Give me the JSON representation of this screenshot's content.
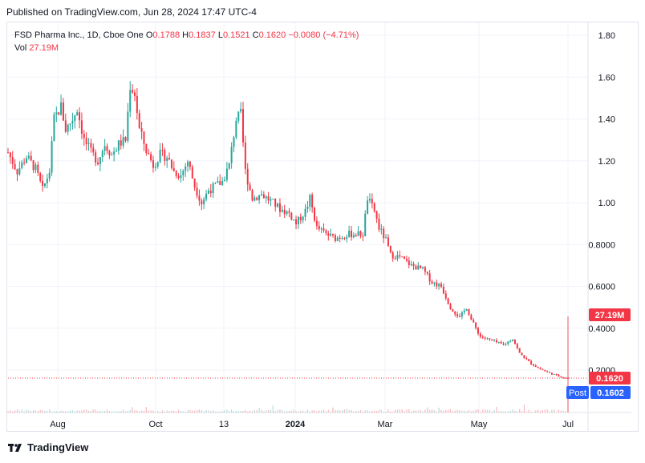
{
  "header": {
    "published": "Published on TradingView.com, Jun 28, 2024 17:47 UTC-4"
  },
  "legend": {
    "symbol": "FSD Pharma Inc., 1D, Cboe One",
    "open_label": "O",
    "open": "0.1788",
    "high_label": "H",
    "high": "0.1837",
    "low_label": "L",
    "low": "0.1521",
    "close_label": "C",
    "close": "0.1620",
    "change": "−0.0080 (−4.71%)",
    "vol_label": "Vol",
    "vol": "27.19M"
  },
  "badges": {
    "volume": "27.19M",
    "last": "0.1620",
    "post_label": "Post",
    "post": "0.1602"
  },
  "footer": {
    "brand": "TradingView"
  },
  "colors": {
    "up": "#26a69a",
    "down": "#f23645",
    "grid": "#f0f3fa",
    "text": "#131722",
    "post_badge": "#2962ff"
  },
  "chart_data": {
    "type": "candlestick",
    "y_axis": {
      "ticks": [
        "1.80",
        "1.60",
        "1.40",
        "1.20",
        "1.00",
        "0.8000",
        "0.6000",
        "0.4000",
        "0.2000"
      ],
      "min": 0.15,
      "max": 1.85
    },
    "x_axis": {
      "ticks": [
        "Aug",
        "Oct",
        "13",
        "2024",
        "Mar",
        "May",
        "Jul"
      ]
    },
    "last_price": 0.162,
    "path": [
      [
        0,
        1.24
      ],
      [
        4,
        1.15
      ],
      [
        8,
        1.22
      ],
      [
        12,
        1.16
      ],
      [
        15,
        1.06
      ],
      [
        18,
        1.15
      ],
      [
        20,
        1.4
      ],
      [
        23,
        1.46
      ],
      [
        25,
        1.35
      ],
      [
        28,
        1.4
      ],
      [
        30,
        1.45
      ],
      [
        33,
        1.3
      ],
      [
        36,
        1.24
      ],
      [
        39,
        1.2
      ],
      [
        42,
        1.28
      ],
      [
        45,
        1.23
      ],
      [
        48,
        1.28
      ],
      [
        51,
        1.3
      ],
      [
        53,
        1.56
      ],
      [
        55,
        1.52
      ],
      [
        57,
        1.35
      ],
      [
        60,
        1.25
      ],
      [
        63,
        1.18
      ],
      [
        66,
        1.23
      ],
      [
        69,
        1.22
      ],
      [
        72,
        1.15
      ],
      [
        75,
        1.13
      ],
      [
        78,
        1.2
      ],
      [
        81,
        1.08
      ],
      [
        84,
        1.0
      ],
      [
        87,
        1.06
      ],
      [
        90,
        1.08
      ],
      [
        93,
        1.1
      ],
      [
        96,
        1.18
      ],
      [
        99,
        1.4
      ],
      [
        101,
        1.42
      ],
      [
        103,
        1.15
      ],
      [
        106,
        1.02
      ],
      [
        110,
        1.04
      ],
      [
        115,
        1.0
      ],
      [
        118,
        0.97
      ],
      [
        122,
        0.95
      ],
      [
        125,
        0.9
      ],
      [
        129,
        0.96
      ],
      [
        131,
        1.02
      ],
      [
        134,
        0.88
      ],
      [
        138,
        0.85
      ],
      [
        142,
        0.83
      ],
      [
        148,
        0.85
      ],
      [
        154,
        0.85
      ],
      [
        156,
        1.02
      ],
      [
        159,
        0.96
      ],
      [
        161,
        0.88
      ],
      [
        164,
        0.82
      ],
      [
        166,
        0.75
      ],
      [
        170,
        0.74
      ],
      [
        175,
        0.7
      ],
      [
        180,
        0.68
      ],
      [
        184,
        0.62
      ],
      [
        188,
        0.6
      ],
      [
        192,
        0.5
      ],
      [
        196,
        0.45
      ],
      [
        199,
        0.5
      ],
      [
        201,
        0.44
      ],
      [
        205,
        0.36
      ],
      [
        210,
        0.34
      ],
      [
        215,
        0.32
      ],
      [
        219,
        0.35
      ],
      [
        222,
        0.28
      ],
      [
        226,
        0.24
      ],
      [
        230,
        0.21
      ],
      [
        234,
        0.19
      ],
      [
        238,
        0.175
      ],
      [
        241,
        0.165
      ],
      [
        243,
        0.162
      ]
    ],
    "volume_spike": {
      "index": 243,
      "value": "27.19M"
    }
  }
}
